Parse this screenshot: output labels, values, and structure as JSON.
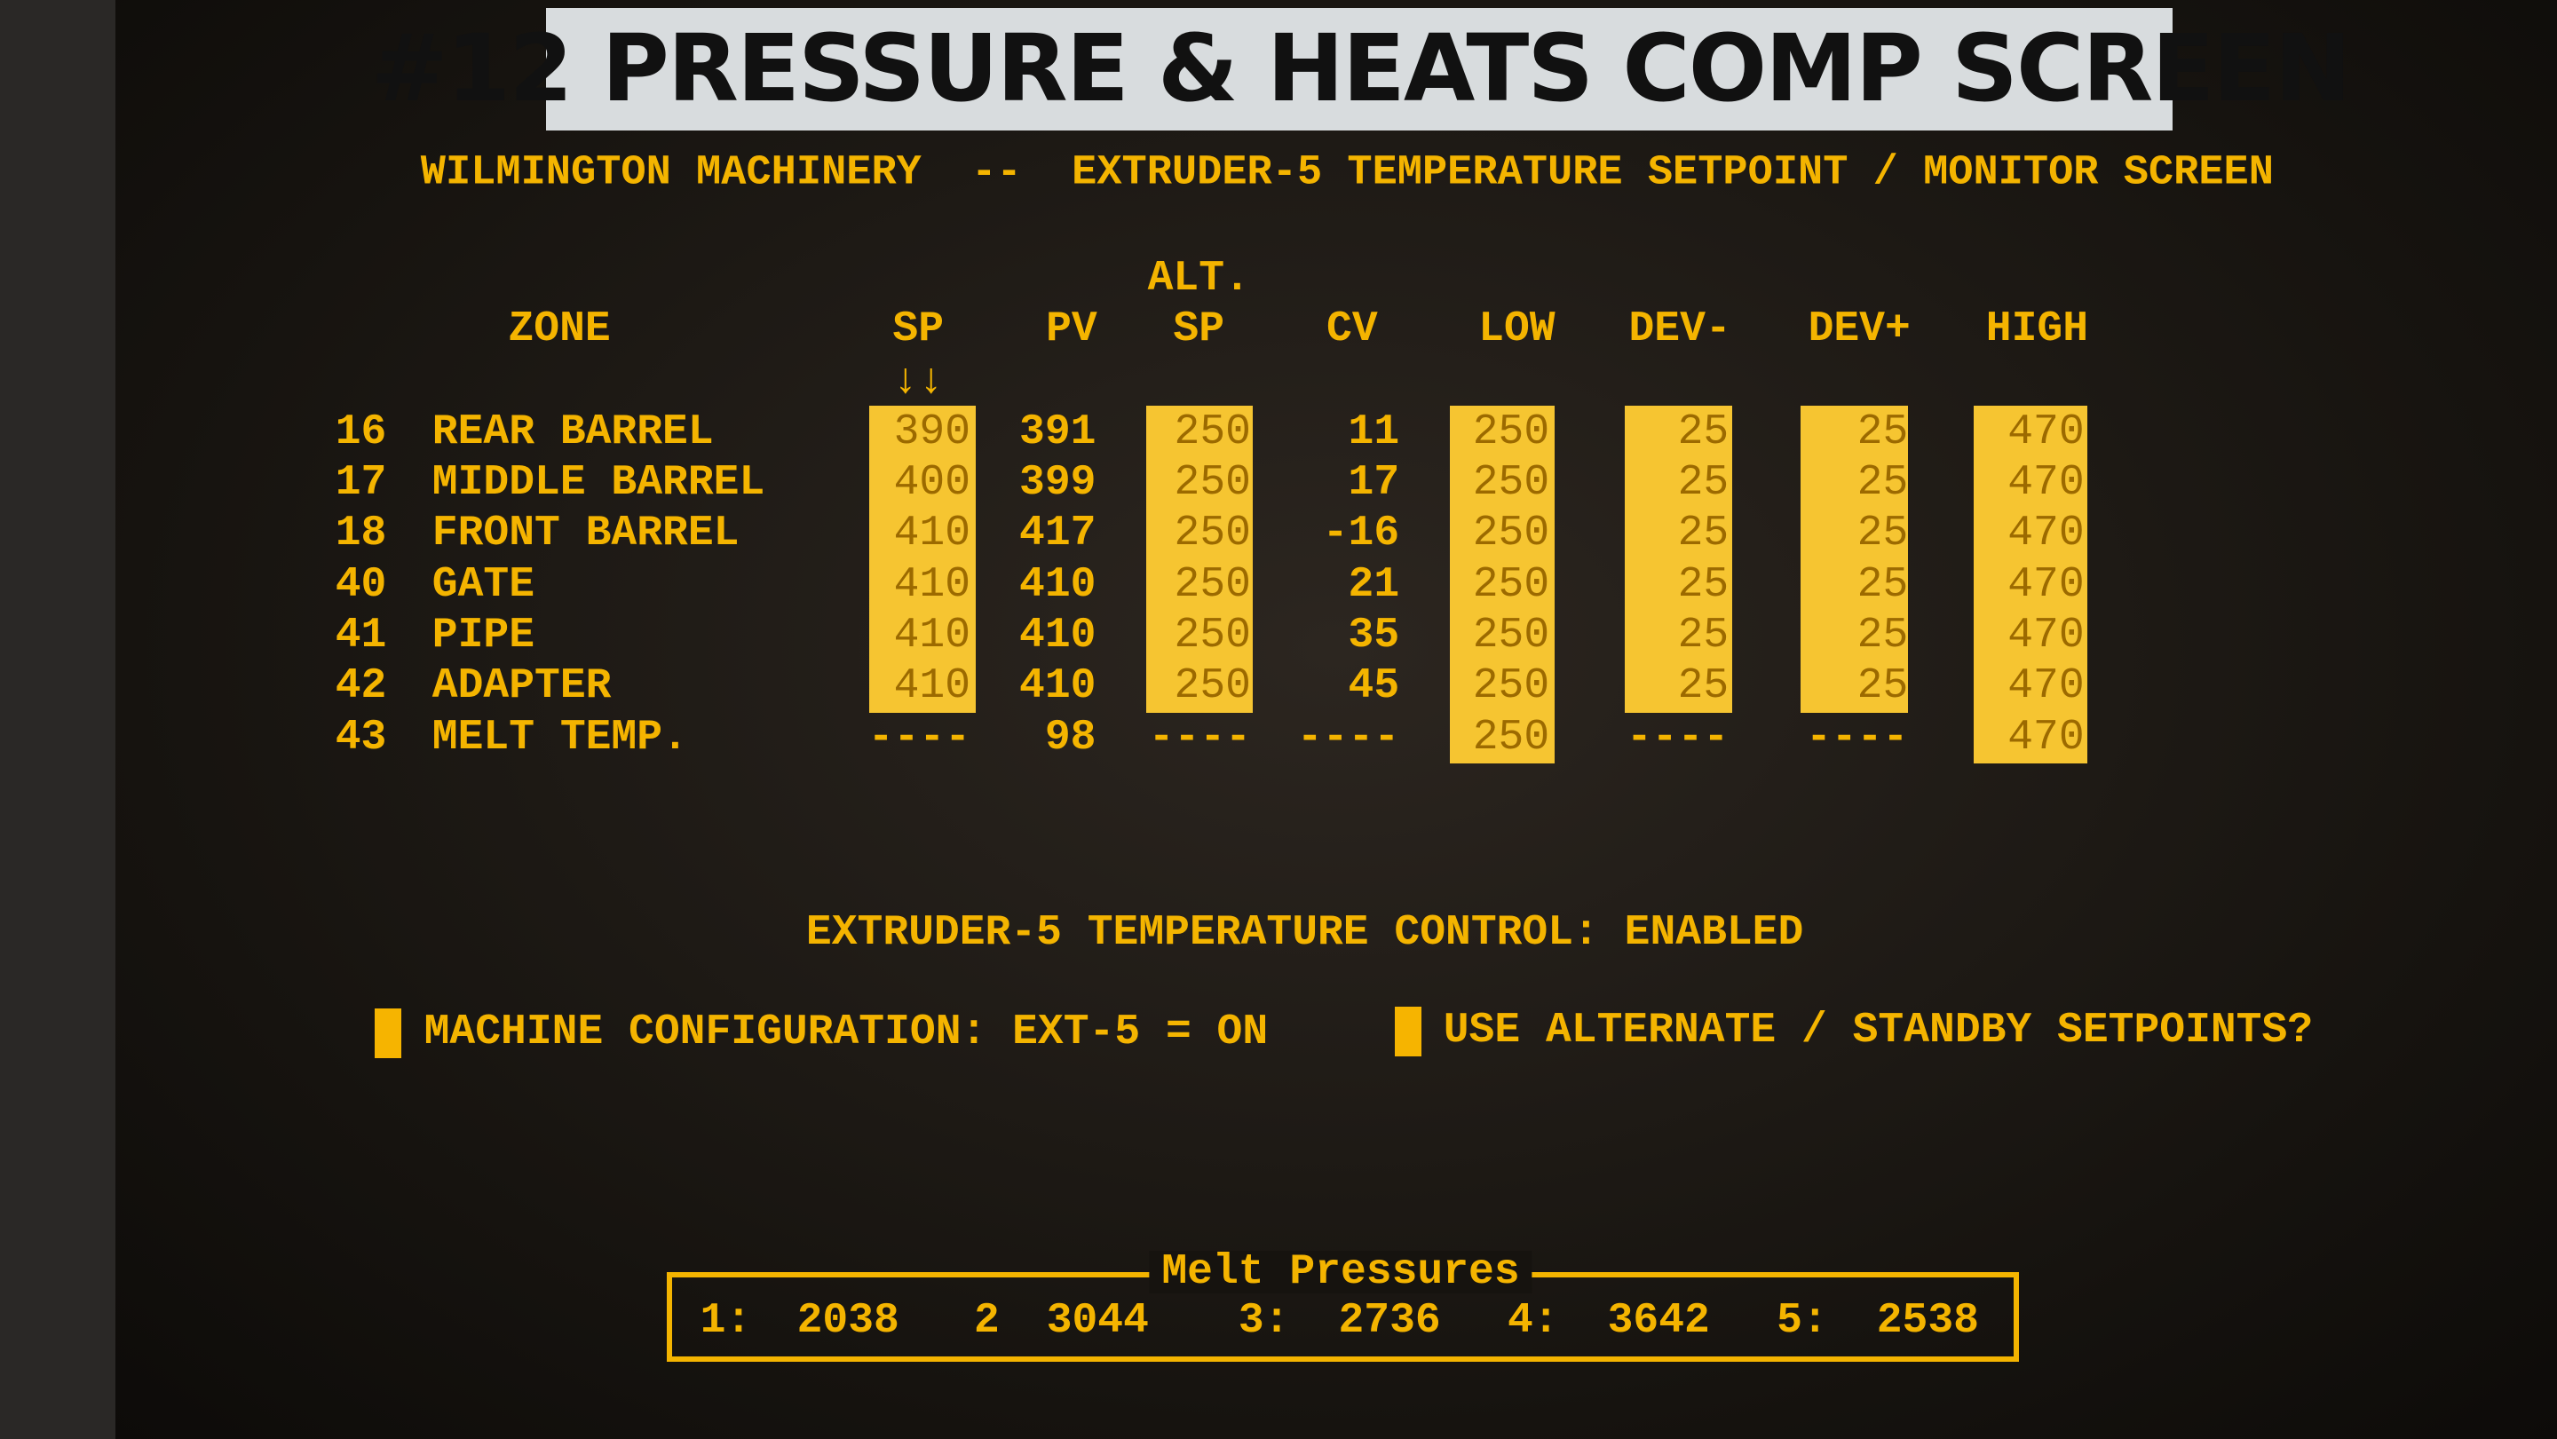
{
  "label": "#12 PRESSURE & HEATS COMP SCREEN",
  "header": "WILMINGTON MACHINERY  --  EXTRUDER-5 TEMPERATURE SETPOINT / MONITOR SCREEN",
  "table": {
    "alt_label": "ALT.",
    "sp_arrows": "↓↓",
    "columns": [
      "ZONE",
      "SP",
      "PV",
      "SP",
      "CV",
      "LOW",
      "DEV-",
      "DEV+",
      "HIGH"
    ],
    "rows": [
      [
        16,
        "REAR BARREL",
        390,
        391,
        250,
        11,
        250,
        25,
        25,
        470
      ],
      [
        17,
        "MIDDLE BARREL",
        400,
        399,
        250,
        17,
        250,
        25,
        25,
        470
      ],
      [
        18,
        "FRONT BARREL",
        410,
        417,
        250,
        -16,
        250,
        25,
        25,
        470
      ],
      [
        40,
        "GATE",
        410,
        410,
        250,
        21,
        250,
        25,
        25,
        470
      ],
      [
        41,
        "PIPE",
        410,
        410,
        250,
        35,
        250,
        25,
        25,
        470
      ],
      [
        42,
        "ADAPTER",
        410,
        410,
        250,
        45,
        250,
        25,
        25,
        470
      ],
      [
        43,
        "MELT TEMP.",
        "----",
        98,
        "----",
        "----",
        250,
        "----",
        "----",
        470
      ]
    ]
  },
  "status": "EXTRUDER-5 TEMPERATURE CONTROL: ENABLED",
  "options": [
    "MACHINE CONFIGURATION: EXT-5 = ON",
    "USE ALTERNATE / STANDBY SETPOINTS?"
  ],
  "pressures": {
    "title": "Melt Pressures",
    "items": [
      {
        "label": "1:",
        "value": 2038
      },
      {
        "label": "2",
        "value": 3044
      },
      {
        "label": "3:",
        "value": 2736
      },
      {
        "label": "4:",
        "value": 3642
      },
      {
        "label": "5:",
        "value": 2538
      }
    ]
  }
}
